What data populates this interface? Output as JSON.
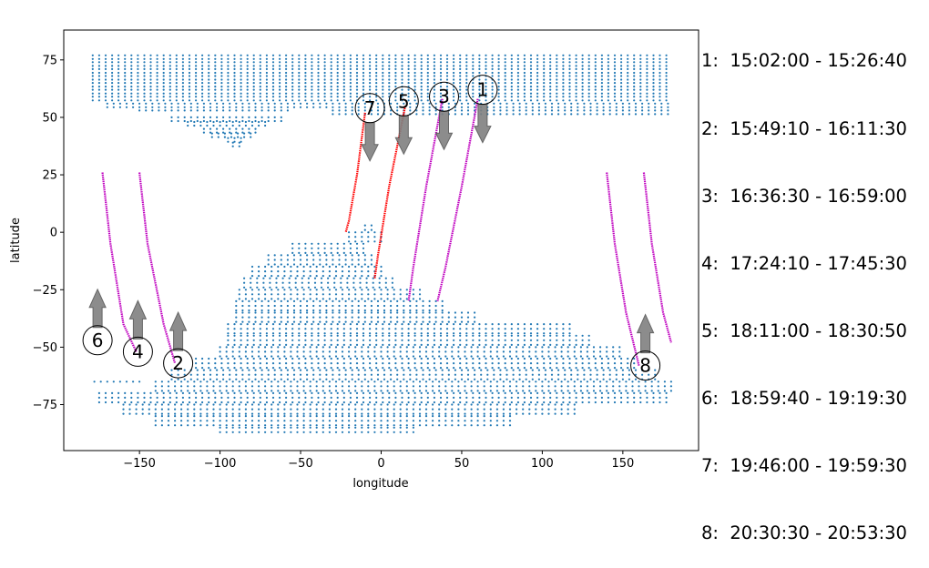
{
  "chart_data": {
    "type": "scatter",
    "xlabel": "longitude",
    "ylabel": "latitude",
    "xlim": [
      -197,
      197
    ],
    "ylim": [
      -95,
      88
    ],
    "xticks": [
      -150,
      -100,
      -50,
      0,
      50,
      100,
      150
    ],
    "yticks": [
      -75,
      -50,
      -25,
      0,
      25,
      50,
      75
    ],
    "grid": false,
    "colors": {
      "dots": "#1f77b4",
      "track_magenta": "#bf00bf",
      "track_red": "#ff0000",
      "arrow": "#808080"
    },
    "legend": [
      "1:  15:02:00 - 15:26:40",
      "2:  15:49:10 - 16:11:30",
      "3:  16:36:30 - 16:59:00",
      "4:  17:24:10 - 17:45:30",
      "5:  18:11:00 - 18:30:50",
      "6:  18:59:40 - 19:19:30",
      "7:  19:46:00 - 19:59:30",
      "8:  20:30:30 - 20:53:30"
    ],
    "swaths": [
      {
        "name": "north",
        "lat_step": 1.6,
        "lon_step": 4,
        "rows": [
          [
            77,
            -179,
            180
          ],
          [
            74,
            -179,
            180
          ],
          [
            71,
            -179,
            180
          ],
          [
            68,
            -179,
            180
          ],
          [
            65,
            -179,
            180
          ],
          [
            62,
            -179,
            180
          ],
          [
            59,
            -179,
            180
          ],
          [
            56,
            -170,
            180
          ],
          [
            53,
            -150,
            -55
          ],
          [
            53,
            -30,
            180
          ],
          [
            50,
            -130,
            -60
          ],
          [
            48,
            -120,
            -70
          ],
          [
            45,
            -110,
            -75
          ],
          [
            43,
            -105,
            -80
          ],
          [
            41,
            -95,
            -85
          ],
          [
            39,
            -92,
            -88
          ]
        ]
      },
      {
        "name": "south",
        "lat_step": 2,
        "lon_step": 4,
        "rows": [
          [
            3,
            -10,
            -5
          ],
          [
            0,
            -20,
            0
          ],
          [
            -5,
            -55,
            -10
          ],
          [
            -10,
            -70,
            -5
          ],
          [
            -15,
            -80,
            0
          ],
          [
            -20,
            -85,
            10
          ],
          [
            -25,
            -88,
            25
          ],
          [
            -30,
            -90,
            40
          ],
          [
            -35,
            -90,
            60
          ],
          [
            -40,
            -95,
            120
          ],
          [
            -45,
            -95,
            130
          ],
          [
            -50,
            -100,
            150
          ],
          [
            -55,
            -115,
            160
          ],
          [
            -60,
            -130,
            170
          ],
          [
            -65,
            -178,
            -150
          ],
          [
            -65,
            -140,
            180
          ],
          [
            -70,
            -175,
            180
          ],
          [
            -75,
            -160,
            120
          ],
          [
            -80,
            -140,
            80
          ],
          [
            -85,
            -100,
            20
          ]
        ]
      }
    ],
    "tracks": [
      {
        "label": "1",
        "color": "#bf00bf",
        "points": [
          [
            60,
            58
          ],
          [
            50,
            20
          ],
          [
            40,
            -15
          ],
          [
            35,
            -30
          ]
        ]
      },
      {
        "label": "2",
        "color": "#bf00bf",
        "points": [
          [
            -150,
            26
          ],
          [
            -145,
            -5
          ],
          [
            -135,
            -40
          ],
          [
            -128,
            -57
          ]
        ]
      },
      {
        "label": "3",
        "color": "#bf00bf",
        "points": [
          [
            38,
            58
          ],
          [
            28,
            20
          ],
          [
            20,
            -15
          ],
          [
            17,
            -30
          ]
        ]
      },
      {
        "label": "4",
        "color": "#bf00bf",
        "points": [
          [
            -173,
            26
          ],
          [
            -168,
            -5
          ],
          [
            -160,
            -40
          ],
          [
            -152,
            -52
          ]
        ]
      },
      {
        "label": "5",
        "color": "#ff0000",
        "points": [
          [
            15,
            55
          ],
          [
            5,
            20
          ],
          [
            -2,
            -10
          ],
          [
            -4,
            -20
          ]
        ]
      },
      {
        "label": "6",
        "color": "#bf00bf",
        "points": [
          [
            140,
            26
          ],
          [
            145,
            -5
          ],
          [
            152,
            -35
          ],
          [
            160,
            -58
          ]
        ]
      },
      {
        "label": "7",
        "color": "#ff0000",
        "points": [
          [
            -10,
            52
          ],
          [
            -15,
            25
          ],
          [
            -20,
            5
          ],
          [
            -22,
            0
          ]
        ]
      },
      {
        "label": "8",
        "color": "#bf00bf",
        "points": [
          [
            163,
            26
          ],
          [
            168,
            -5
          ],
          [
            175,
            -35
          ],
          [
            180,
            -48
          ]
        ]
      }
    ],
    "arrows": [
      {
        "label": "1",
        "x": 63,
        "y": 62,
        "direction": "down"
      },
      {
        "label": "2",
        "x": -126,
        "y": -57,
        "direction": "up"
      },
      {
        "label": "3",
        "x": 39,
        "y": 59,
        "direction": "down"
      },
      {
        "label": "4",
        "x": -151,
        "y": -52,
        "direction": "up"
      },
      {
        "label": "5",
        "x": 14,
        "y": 57,
        "direction": "down"
      },
      {
        "label": "6",
        "x": -176,
        "y": -47,
        "direction": "up"
      },
      {
        "label": "7",
        "x": -7,
        "y": 54,
        "direction": "down"
      },
      {
        "label": "8",
        "x": 164,
        "y": -58,
        "direction": "up"
      }
    ]
  }
}
